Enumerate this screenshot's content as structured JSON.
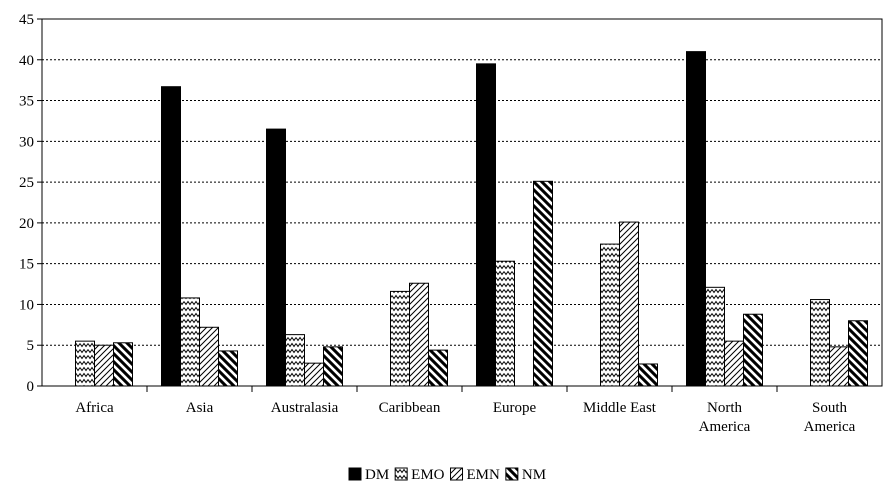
{
  "chart_data": {
    "type": "bar",
    "title": "",
    "xlabel": "",
    "ylabel": "",
    "ylim": [
      0,
      45
    ],
    "yticks": [
      0,
      5,
      10,
      15,
      20,
      25,
      30,
      35,
      40,
      45
    ],
    "grid": true,
    "legend_position": "bottom",
    "categories": [
      [
        "Africa"
      ],
      [
        "Asia"
      ],
      [
        "Australasia"
      ],
      [
        "Caribbean"
      ],
      [
        "Europe"
      ],
      [
        "Middle East"
      ],
      [
        "North",
        "America"
      ],
      [
        "South",
        "America"
      ]
    ],
    "series": [
      {
        "name": "DM",
        "pattern": "solid",
        "values": [
          0,
          36.7,
          31.5,
          0,
          39.5,
          0,
          41.0,
          0
        ]
      },
      {
        "name": "EMO",
        "pattern": "wave",
        "values": [
          5.5,
          10.8,
          6.3,
          11.6,
          15.3,
          17.4,
          12.1,
          10.6
        ]
      },
      {
        "name": "EMN",
        "pattern": "diagonal",
        "values": [
          5.0,
          7.2,
          2.8,
          12.6,
          0,
          20.1,
          5.5,
          4.8
        ]
      },
      {
        "name": "NM",
        "pattern": "stripe",
        "values": [
          5.3,
          4.3,
          4.8,
          4.4,
          25.1,
          2.7,
          8.8,
          8.0
        ]
      }
    ]
  }
}
